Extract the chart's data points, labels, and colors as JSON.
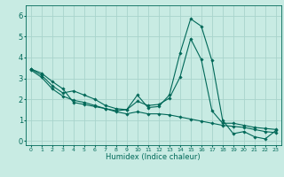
{
  "xlabel": "Humidex (Indice chaleur)",
  "xlim": [
    -0.5,
    23.5
  ],
  "ylim": [
    -0.2,
    6.5
  ],
  "xticks": [
    0,
    1,
    2,
    3,
    4,
    5,
    6,
    7,
    8,
    9,
    10,
    11,
    12,
    13,
    14,
    15,
    16,
    17,
    18,
    19,
    20,
    21,
    22,
    23
  ],
  "yticks": [
    0,
    1,
    2,
    3,
    4,
    5,
    6
  ],
  "bg_color": "#c8ebe3",
  "grid_color": "#a8d4cc",
  "line_color": "#006858",
  "line1_x": [
    0,
    1,
    2,
    3,
    4,
    5,
    6,
    7,
    8,
    9,
    10,
    11,
    12,
    13,
    14,
    15,
    16,
    17,
    18,
    19,
    20,
    21,
    22,
    23
  ],
  "line1_y": [
    3.45,
    3.25,
    2.85,
    2.5,
    1.85,
    1.75,
    1.65,
    1.55,
    1.45,
    1.5,
    2.2,
    1.6,
    1.65,
    2.2,
    4.2,
    5.85,
    5.5,
    3.85,
    1.0,
    0.35,
    0.45,
    0.2,
    0.1,
    0.5
  ],
  "line2_x": [
    0,
    1,
    2,
    3,
    4,
    5,
    6,
    7,
    8,
    9,
    10,
    11,
    12,
    13,
    14,
    15,
    16,
    17,
    18,
    19,
    20,
    21,
    22,
    23
  ],
  "line2_y": [
    3.45,
    3.15,
    2.65,
    2.3,
    2.4,
    2.2,
    2.0,
    1.7,
    1.55,
    1.5,
    1.9,
    1.7,
    1.75,
    2.05,
    3.05,
    4.9,
    3.9,
    1.45,
    0.85,
    0.85,
    0.75,
    0.65,
    0.6,
    0.55
  ],
  "line3_x": [
    0,
    1,
    2,
    3,
    4,
    5,
    6,
    7,
    8,
    9,
    10,
    11,
    12,
    13,
    14,
    15,
    16,
    17,
    18,
    19,
    20,
    21,
    22,
    23
  ],
  "line3_y": [
    3.4,
    3.05,
    2.5,
    2.15,
    1.95,
    1.85,
    1.7,
    1.55,
    1.4,
    1.3,
    1.4,
    1.3,
    1.3,
    1.25,
    1.15,
    1.05,
    0.95,
    0.85,
    0.75,
    0.7,
    0.65,
    0.55,
    0.45,
    0.4
  ],
  "marker": "D",
  "markersize": 1.8,
  "linewidth": 0.8,
  "xlabel_fontsize": 6.0,
  "tick_fontsize_x": 4.5,
  "tick_fontsize_y": 6.0
}
